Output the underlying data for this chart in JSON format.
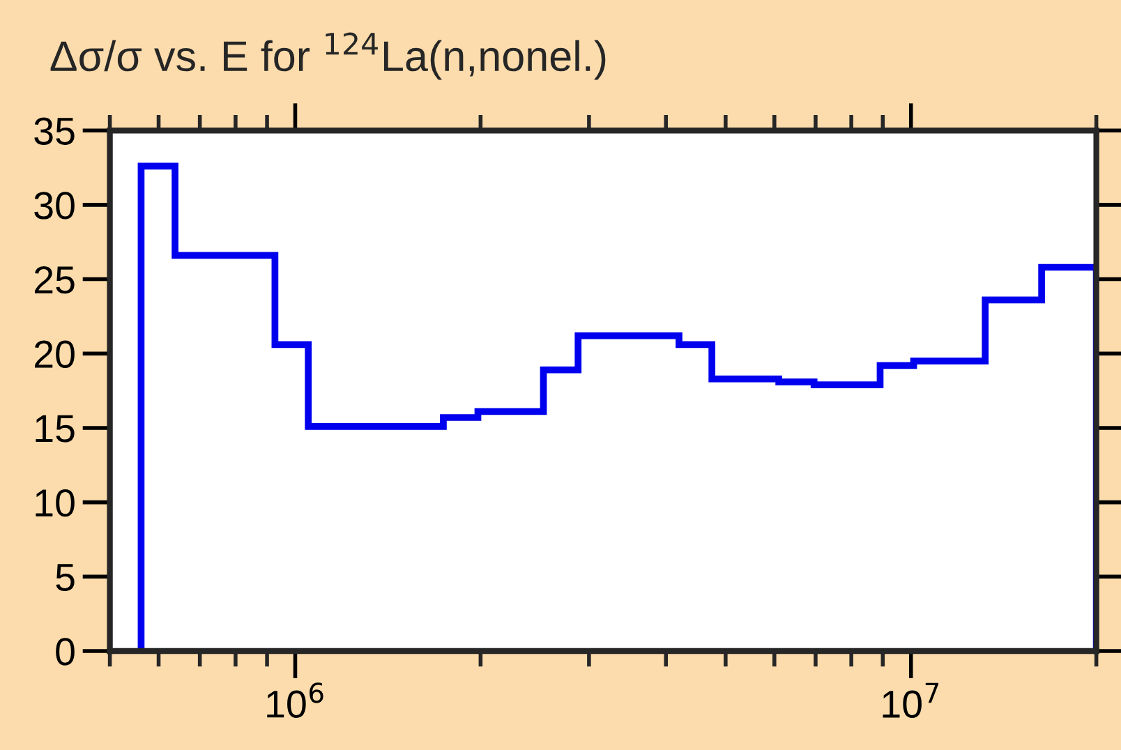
{
  "chart_data": {
    "type": "histogram",
    "title": "Δσ/σ vs. E for $^{124}$La(n,nonel.)",
    "bins": [
      562000,
      638000,
      927000,
      1050000,
      1740000,
      1980000,
      2530000,
      2880000,
      4200000,
      4750000,
      6100000,
      6960000,
      8910000,
      10100000,
      13200000,
      16300000,
      20000000
    ],
    "values": [
      32.6,
      26.6,
      20.6,
      15.1,
      15.7,
      16.1,
      18.9,
      21.2,
      20.6,
      18.3,
      18.1,
      17.9,
      19.2,
      19.5,
      23.6,
      25.8
    ],
    "color": "#0000ee",
    "log": "x",
    "xlim": [
      500000,
      20000000
    ],
    "xticks": [
      {
        "value": 500000,
        "label": null
      },
      {
        "value": 600000,
        "label": null
      },
      {
        "value": 700000,
        "label": null
      },
      {
        "value": 800000,
        "label": null
      },
      {
        "value": 900000,
        "label": null
      },
      {
        "value": 1000000,
        "label": "10$^{6}$"
      },
      {
        "value": 2000000,
        "label": null
      },
      {
        "value": 3000000,
        "label": null
      },
      {
        "value": 4000000,
        "label": null
      },
      {
        "value": 5000000,
        "label": null
      },
      {
        "value": 6000000,
        "label": null
      },
      {
        "value": 7000000,
        "label": null
      },
      {
        "value": 8000000,
        "label": null
      },
      {
        "value": 9000000,
        "label": null
      },
      {
        "value": 10000000,
        "label": "10$^{7}$"
      },
      {
        "value": 20000000,
        "label": null
      }
    ],
    "ylim": [
      0,
      35
    ],
    "yticks": [
      0,
      5,
      10,
      15,
      20,
      25,
      30,
      35
    ],
    "grid": false
  }
}
